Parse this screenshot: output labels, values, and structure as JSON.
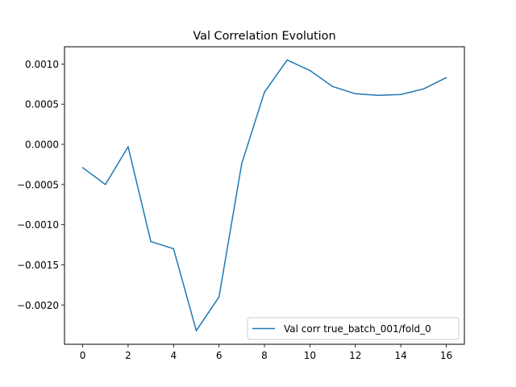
{
  "chart_data": {
    "type": "line",
    "title": "Val Correlation Evolution",
    "xlabel": "",
    "ylabel": "",
    "x": [
      0,
      1,
      2,
      3,
      4,
      5,
      6,
      7,
      8,
      9,
      10,
      11,
      12,
      13,
      14,
      15,
      16
    ],
    "series": [
      {
        "name": "Val corr true_batch_001/fold_0",
        "color": "#1f77b4",
        "values": [
          -0.00029,
          -0.0005,
          -3e-05,
          -0.00121,
          -0.0013,
          -0.00232,
          -0.0019,
          -0.00024,
          0.00065,
          0.00105,
          0.00092,
          0.00072,
          0.00063,
          0.00061,
          0.00062,
          0.00069,
          0.00083
        ]
      }
    ],
    "xlim": [
      -0.8,
      16.8
    ],
    "ylim": [
      -0.002489,
      0.001215
    ],
    "xticks": [
      0,
      2,
      4,
      6,
      8,
      10,
      12,
      14,
      16
    ],
    "xtick_labels": [
      "0",
      "2",
      "4",
      "6",
      "8",
      "10",
      "12",
      "14",
      "16"
    ],
    "yticks": [
      0.001,
      0.0005,
      0.0,
      -0.0005,
      -0.001,
      -0.0015,
      -0.002
    ],
    "ytick_labels": [
      "0.0010",
      "0.0005",
      "0.0000",
      "−0.0005",
      "−0.0010",
      "−0.0015",
      "−0.0020"
    ],
    "grid": false,
    "legend_position": "lower-right"
  }
}
